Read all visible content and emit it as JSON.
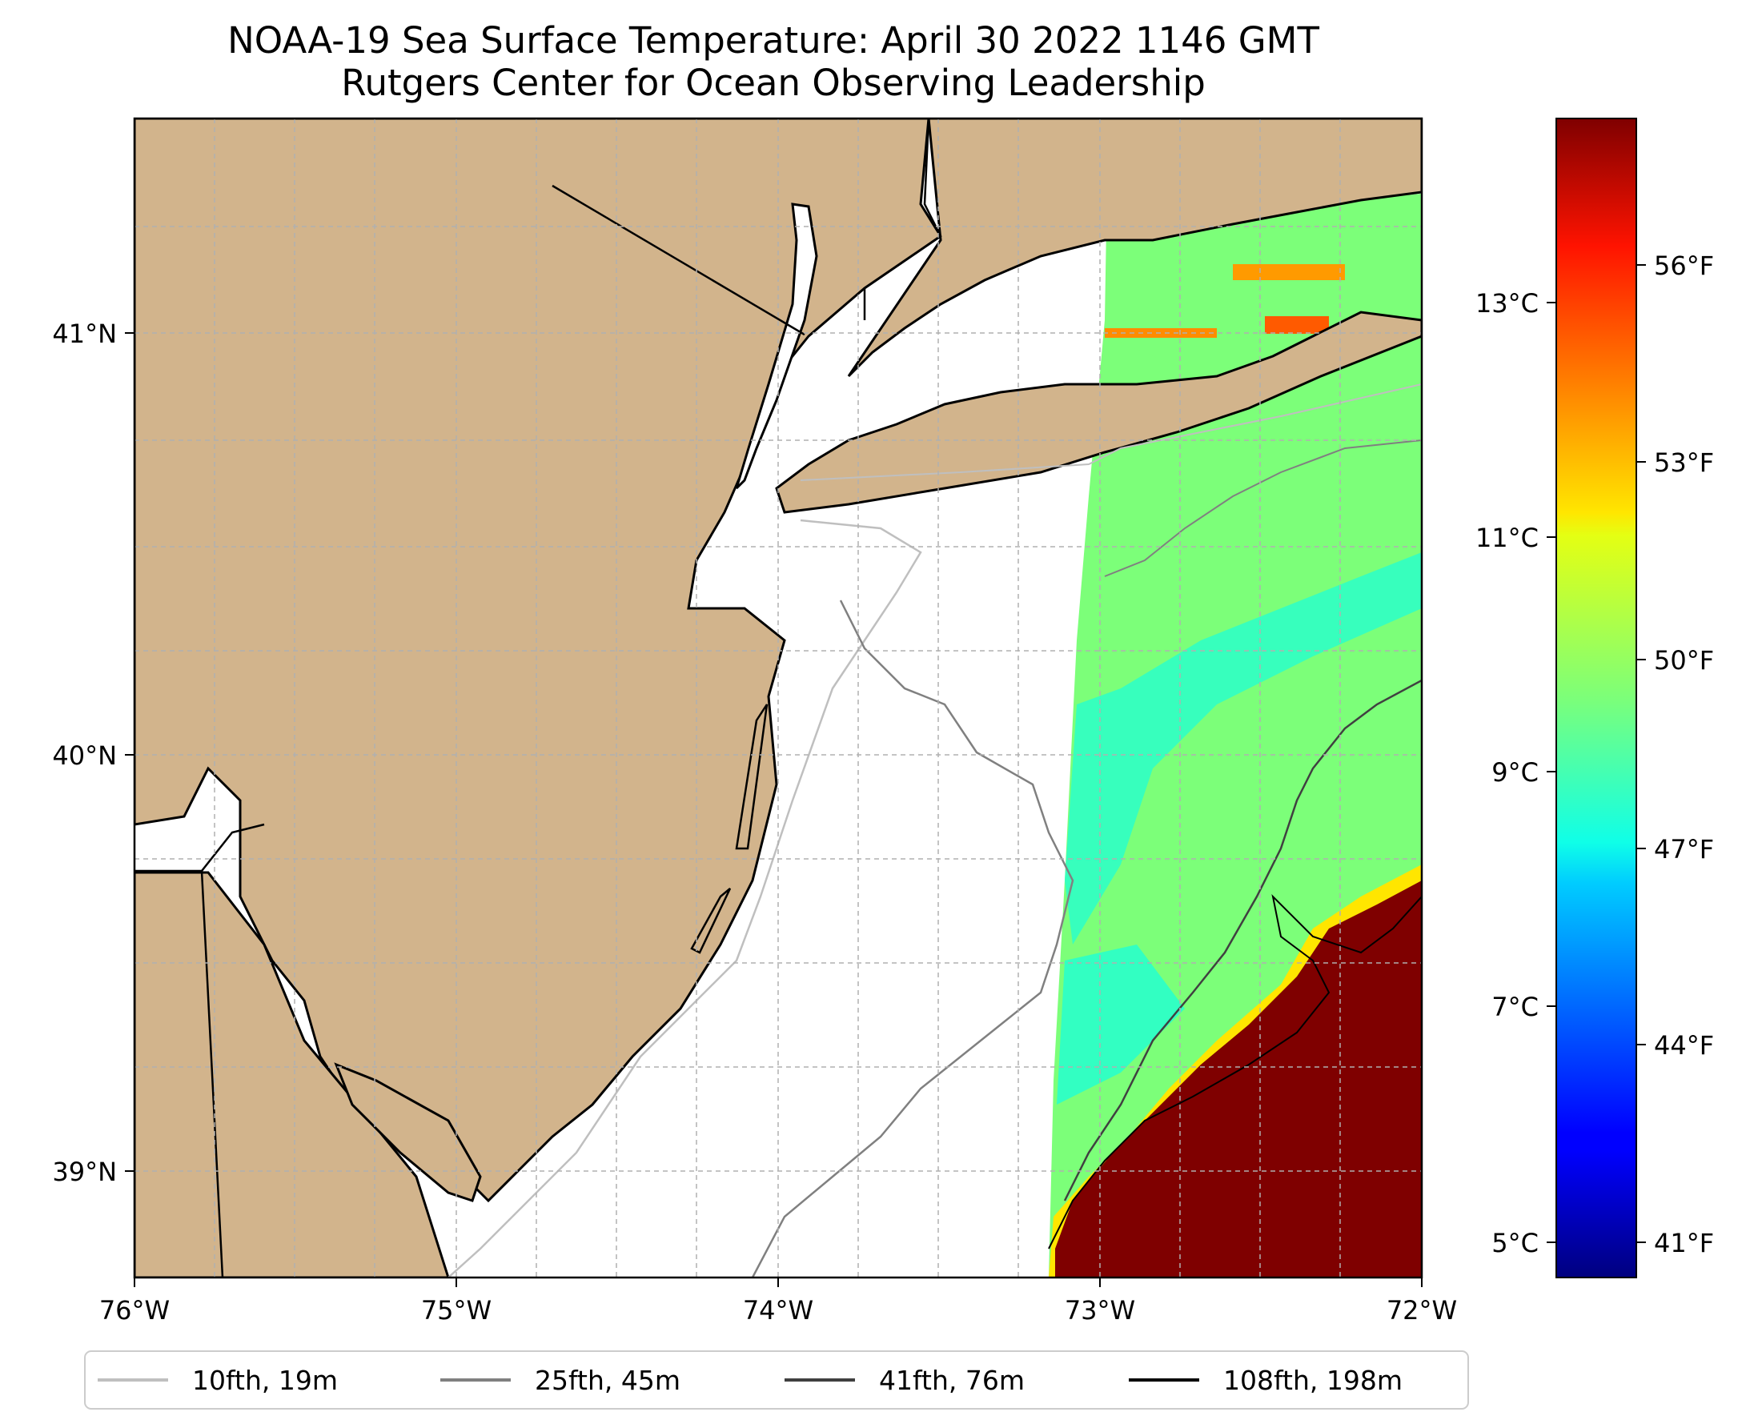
{
  "title": {
    "line1": "NOAA-19 Sea Surface Temperature: April 30 2022 1146 GMT",
    "line2": "Rutgers Center for Ocean Observing Leadership"
  },
  "map": {
    "lon_range": [
      -76,
      -72
    ],
    "lat_range": [
      38.7,
      41.5
    ],
    "land_color": "#d2b48c",
    "ocean_color": "#ffffff",
    "x_ticks": [
      "76°W",
      "75°W",
      "74°W",
      "73°W",
      "72°W"
    ],
    "y_ticks": [
      "41°N",
      "40°N",
      "39°N"
    ],
    "gridlines": true
  },
  "colorbar": {
    "colormap": "jet",
    "celsius_ticks": [
      "13°C",
      "11°C",
      "9°C",
      "7°C",
      "5°C"
    ],
    "fahrenheit_ticks": [
      "56°F",
      "53°F",
      "50°F",
      "47°F",
      "44°F",
      "41°F"
    ],
    "range_f": [
      40.5,
      58.0
    ]
  },
  "legend": {
    "items": [
      {
        "label": "10fth, 19m",
        "color": "#bfbfbf"
      },
      {
        "label": "25fth, 45m",
        "color": "#808080"
      },
      {
        "label": "41fth, 76m",
        "color": "#404040"
      },
      {
        "label": "108fth, 198m",
        "color": "#000000"
      }
    ]
  },
  "chart_data": {
    "type": "heatmap",
    "description_variable": "sea surface temperature",
    "x": {
      "label": "",
      "range": [
        -76,
        -72
      ],
      "ticks": [
        -76,
        -75,
        -74,
        -73,
        -72
      ]
    },
    "y": {
      "label": "",
      "range": [
        38.7,
        41.5
      ],
      "ticks": [
        39,
        40,
        41
      ]
    },
    "sst_coverage_lon_range": [
      -73.2,
      -72
    ],
    "sst_regions_f": [
      {
        "region": "shelf water east of 73°W",
        "value_f": 49
      },
      {
        "region": "nearshore shelf band",
        "value_f": 50
      },
      {
        "region": "Long Island Sound patches",
        "value_f": 53
      },
      {
        "region": "slope/Gulf Stream water southeast",
        "value_f": 58
      }
    ],
    "colorbar_limits_f": [
      40.5,
      58.0
    ]
  }
}
